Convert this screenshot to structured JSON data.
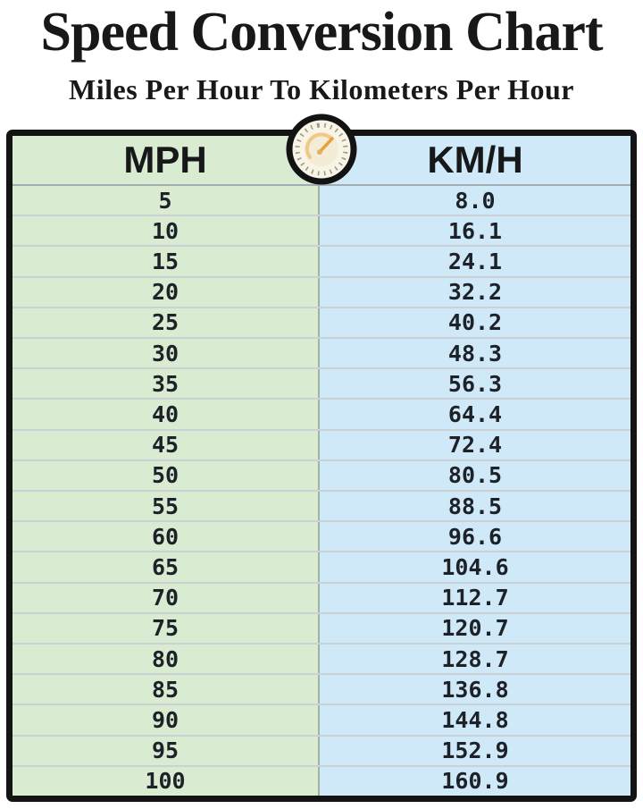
{
  "page": {
    "title": "Speed Conversion Chart",
    "subtitle": "Miles Per Hour To Kilometers Per Hour"
  },
  "table": {
    "columns": [
      "MPH",
      "KM/H"
    ],
    "rows": [
      [
        "5",
        "8.0"
      ],
      [
        "10",
        "16.1"
      ],
      [
        "15",
        "24.1"
      ],
      [
        "20",
        "32.2"
      ],
      [
        "25",
        "40.2"
      ],
      [
        "30",
        "48.3"
      ],
      [
        "35",
        "56.3"
      ],
      [
        "40",
        "64.4"
      ],
      [
        "45",
        "72.4"
      ],
      [
        "50",
        "80.5"
      ],
      [
        "55",
        "88.5"
      ],
      [
        "60",
        "96.6"
      ],
      [
        "65",
        "104.6"
      ],
      [
        "70",
        "112.7"
      ],
      [
        "75",
        "120.7"
      ],
      [
        "80",
        "128.7"
      ],
      [
        "85",
        "136.8"
      ],
      [
        "90",
        "144.8"
      ],
      [
        "95",
        "152.9"
      ],
      [
        "100",
        "160.9"
      ]
    ]
  },
  "icons": {
    "speedometer": "speedometer-gauge-icon"
  },
  "colors": {
    "mph_column": "#d9ecd2",
    "kmh_column": "#cfe9f8",
    "table_border": "#131313",
    "text": "#17181a",
    "gauge_face": "#f8f4e6",
    "gauge_needle": "#e8a23c"
  },
  "chart_data": {
    "type": "table",
    "title": "Speed Conversion Chart",
    "subtitle": "Miles Per Hour To Kilometers Per Hour",
    "columns": [
      "MPH",
      "KM/H"
    ],
    "x": [
      5,
      10,
      15,
      20,
      25,
      30,
      35,
      40,
      45,
      50,
      55,
      60,
      65,
      70,
      75,
      80,
      85,
      90,
      95,
      100
    ],
    "series": [
      {
        "name": "KM/H",
        "values": [
          8.0,
          16.1,
          24.1,
          32.2,
          40.2,
          48.3,
          56.3,
          64.4,
          72.4,
          80.5,
          88.5,
          96.6,
          104.6,
          112.7,
          120.7,
          128.7,
          136.8,
          144.8,
          152.9,
          160.9
        ]
      }
    ]
  }
}
